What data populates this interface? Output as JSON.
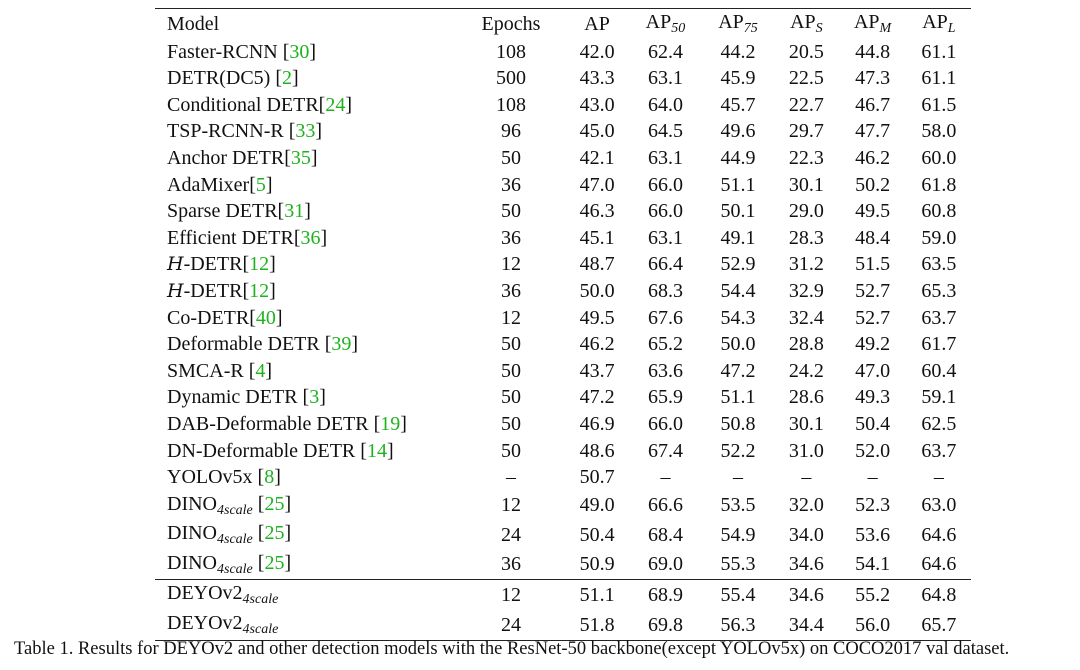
{
  "table": {
    "columns": [
      {
        "base": "Model",
        "sub": ""
      },
      {
        "base": "Epochs",
        "sub": ""
      },
      {
        "base": "AP",
        "sub": ""
      },
      {
        "base": "AP",
        "sub": "50"
      },
      {
        "base": "AP",
        "sub": "75"
      },
      {
        "base": "AP",
        "sub": "S"
      },
      {
        "base": "AP",
        "sub": "M"
      },
      {
        "base": "AP",
        "sub": "L"
      }
    ],
    "rows": [
      {
        "prefix": "",
        "name": "Faster-RCNN",
        "sub": "",
        "ref": "30",
        "ref_sep": " ",
        "epochs": "108",
        "ap": "42.0",
        "ap50": "62.4",
        "ap75": "44.2",
        "aps": "20.5",
        "apm": "44.8",
        "apl": "61.1"
      },
      {
        "prefix": "",
        "name": "DETR(DC5)",
        "sub": "",
        "ref": "2",
        "ref_sep": " ",
        "epochs": "500",
        "ap": "43.3",
        "ap50": "63.1",
        "ap75": "45.9",
        "aps": "22.5",
        "apm": "47.3",
        "apl": "61.1"
      },
      {
        "prefix": "",
        "name": "Conditional DETR",
        "sub": "",
        "ref": "24",
        "ref_sep": "",
        "epochs": "108",
        "ap": "43.0",
        "ap50": "64.0",
        "ap75": "45.7",
        "aps": "22.7",
        "apm": "46.7",
        "apl": "61.5"
      },
      {
        "prefix": "",
        "name": "TSP-RCNN-R",
        "sub": "",
        "ref": "33",
        "ref_sep": " ",
        "epochs": "96",
        "ap": "45.0",
        "ap50": "64.5",
        "ap75": "49.6",
        "aps": "29.7",
        "apm": "47.7",
        "apl": "58.0"
      },
      {
        "prefix": "",
        "name": "Anchor DETR",
        "sub": "",
        "ref": "35",
        "ref_sep": "",
        "epochs": "50",
        "ap": "42.1",
        "ap50": "63.1",
        "ap75": "44.9",
        "aps": "22.3",
        "apm": "46.2",
        "apl": "60.0"
      },
      {
        "prefix": "",
        "name": "AdaMixer",
        "sub": "",
        "ref": "5",
        "ref_sep": "",
        "epochs": "36",
        "ap": "47.0",
        "ap50": "66.0",
        "ap75": "51.1",
        "aps": "30.1",
        "apm": "50.2",
        "apl": "61.8"
      },
      {
        "prefix": "",
        "name": "Sparse DETR",
        "sub": "",
        "ref": "31",
        "ref_sep": "",
        "epochs": "50",
        "ap": "46.3",
        "ap50": "66.0",
        "ap75": "50.1",
        "aps": "29.0",
        "apm": "49.5",
        "apl": "60.8"
      },
      {
        "prefix": "",
        "name": "Efficient DETR",
        "sub": "",
        "ref": "36",
        "ref_sep": "",
        "epochs": "36",
        "ap": "45.1",
        "ap50": "63.1",
        "ap75": "49.1",
        "aps": "28.3",
        "apm": "48.4",
        "apl": "59.0"
      },
      {
        "prefix": "H",
        "name": "-DETR",
        "sub": "",
        "ref": "12",
        "ref_sep": "",
        "epochs": "12",
        "ap": "48.7",
        "ap50": "66.4",
        "ap75": "52.9",
        "aps": "31.2",
        "apm": "51.5",
        "apl": "63.5"
      },
      {
        "prefix": "H",
        "name": "-DETR",
        "sub": "",
        "ref": "12",
        "ref_sep": "",
        "epochs": "36",
        "ap": "50.0",
        "ap50": "68.3",
        "ap75": "54.4",
        "aps": "32.9",
        "apm": "52.7",
        "apl": "65.3"
      },
      {
        "prefix": "",
        "name": "Co-DETR",
        "sub": "",
        "ref": "40",
        "ref_sep": "",
        "epochs": "12",
        "ap": "49.5",
        "ap50": "67.6",
        "ap75": "54.3",
        "aps": "32.4",
        "apm": "52.7",
        "apl": "63.7"
      },
      {
        "prefix": "",
        "name": "Deformable DETR",
        "sub": "",
        "ref": "39",
        "ref_sep": " ",
        "epochs": "50",
        "ap": "46.2",
        "ap50": "65.2",
        "ap75": "50.0",
        "aps": "28.8",
        "apm": "49.2",
        "apl": "61.7"
      },
      {
        "prefix": "",
        "name": "SMCA-R",
        "sub": "",
        "ref": "4",
        "ref_sep": " ",
        "epochs": "50",
        "ap": "43.7",
        "ap50": "63.6",
        "ap75": "47.2",
        "aps": "24.2",
        "apm": "47.0",
        "apl": "60.4"
      },
      {
        "prefix": "",
        "name": "Dynamic DETR",
        "sub": "",
        "ref": "3",
        "ref_sep": " ",
        "epochs": "50",
        "ap": "47.2",
        "ap50": "65.9",
        "ap75": "51.1",
        "aps": "28.6",
        "apm": "49.3",
        "apl": "59.1"
      },
      {
        "prefix": "",
        "name": "DAB-Deformable DETR",
        "sub": "",
        "ref": "19",
        "ref_sep": " ",
        "epochs": "50",
        "ap": "46.9",
        "ap50": "66.0",
        "ap75": "50.8",
        "aps": "30.1",
        "apm": "50.4",
        "apl": "62.5"
      },
      {
        "prefix": "",
        "name": "DN-Deformable DETR",
        "sub": "",
        "ref": "14",
        "ref_sep": " ",
        "epochs": "50",
        "ap": "48.6",
        "ap50": "67.4",
        "ap75": "52.2",
        "aps": "31.0",
        "apm": "52.0",
        "apl": "63.7"
      },
      {
        "prefix": "",
        "name": "YOLOv5x",
        "sub": "",
        "ref": "8",
        "ref_sep": " ",
        "epochs": "–",
        "ap": "50.7",
        "ap50": "–",
        "ap75": "–",
        "aps": "–",
        "apm": "–",
        "apl": "–"
      },
      {
        "prefix": "",
        "name": "DINO",
        "sub": "4scale",
        "ref": "25",
        "ref_sep": " ",
        "epochs": "12",
        "ap": "49.0",
        "ap50": "66.6",
        "ap75": "53.5",
        "aps": "32.0",
        "apm": "52.3",
        "apl": "63.0"
      },
      {
        "prefix": "",
        "name": "DINO",
        "sub": "4scale",
        "ref": "25",
        "ref_sep": " ",
        "epochs": "24",
        "ap": "50.4",
        "ap50": "68.4",
        "ap75": "54.9",
        "aps": "34.0",
        "apm": "53.6",
        "apl": "64.6"
      },
      {
        "prefix": "",
        "name": "DINO",
        "sub": "4scale",
        "ref": "25",
        "ref_sep": " ",
        "epochs": "36",
        "ap": "50.9",
        "ap50": "69.0",
        "ap75": "55.3",
        "aps": "34.6",
        "apm": "54.1",
        "apl": "64.6"
      }
    ],
    "ours": [
      {
        "name": "DEYOv2",
        "sub": "4scale",
        "epochs": "12",
        "ap": "51.1",
        "ap50": "68.9",
        "ap75": "55.4",
        "aps": "34.6",
        "apm": "55.2",
        "apl": "64.8"
      },
      {
        "name": "DEYOv2",
        "sub": "4scale",
        "epochs": "24",
        "ap": "51.8",
        "ap50": "69.8",
        "ap75": "56.3",
        "aps": "34.4",
        "apm": "56.0",
        "apl": "65.7"
      }
    ]
  },
  "caption": "Table 1. Results for DEYOv2 and other detection models with the ResNet-50 backbone(except YOLOv5x) on COCO2017 val dataset.",
  "colors": {
    "reference": "#1db31d",
    "text": "#111111"
  }
}
